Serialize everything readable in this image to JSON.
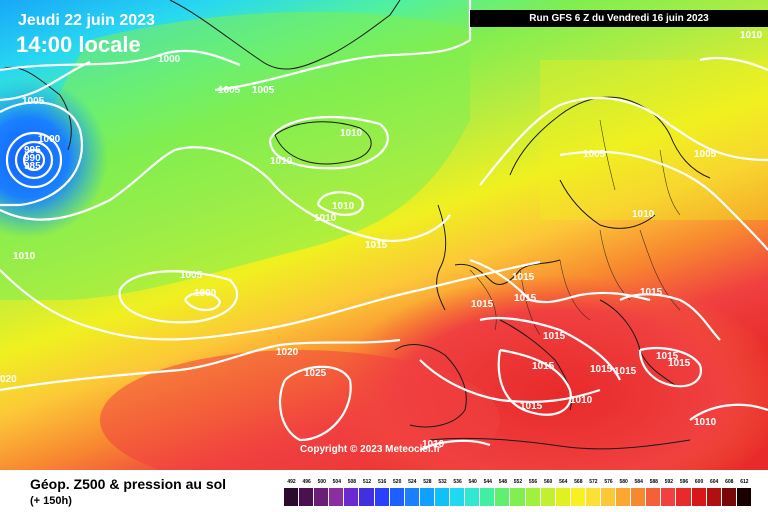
{
  "header": {
    "valid_date": "Jeudi 22 juin 2023",
    "local_time": "14:00 locale",
    "run": "Run GFS 6 Z du Vendredi 16 juin 2023"
  },
  "map": {
    "pressure_labels": [
      {
        "id": "p1",
        "text": "1000"
      },
      {
        "id": "p2",
        "text": "1005"
      },
      {
        "id": "p3",
        "text": "1005"
      },
      {
        "id": "p4",
        "text": "1005"
      },
      {
        "id": "p5",
        "text": "1000"
      },
      {
        "id": "p6",
        "text": "995"
      },
      {
        "id": "p7",
        "text": "990"
      },
      {
        "id": "p8",
        "text": "985"
      },
      {
        "id": "p9",
        "text": "1010"
      },
      {
        "id": "p10",
        "text": "1010"
      },
      {
        "id": "p11",
        "text": "1010"
      },
      {
        "id": "p12",
        "text": "1010"
      },
      {
        "id": "p13",
        "text": "1015"
      },
      {
        "id": "p14",
        "text": "1010"
      },
      {
        "id": "p15",
        "text": "1005"
      },
      {
        "id": "p16",
        "text": "1000"
      },
      {
        "id": "p17",
        "text": "1020"
      },
      {
        "id": "p18",
        "text": "1025"
      },
      {
        "id": "p19",
        "text": "020"
      },
      {
        "id": "p20",
        "text": "1005"
      },
      {
        "id": "p21",
        "text": "1005"
      },
      {
        "id": "p22",
        "text": "1010"
      },
      {
        "id": "p23",
        "text": "1010"
      },
      {
        "id": "p24",
        "text": "1015"
      },
      {
        "id": "p25",
        "text": "1015"
      },
      {
        "id": "p26",
        "text": "1015"
      },
      {
        "id": "p27",
        "text": "1015"
      },
      {
        "id": "p28",
        "text": "1015"
      },
      {
        "id": "p29",
        "text": "1015"
      },
      {
        "id": "p30",
        "text": "1015"
      },
      {
        "id": "p31",
        "text": "1015"
      },
      {
        "id": "p32",
        "text": "1015"
      },
      {
        "id": "p33",
        "text": "1015"
      },
      {
        "id": "p34",
        "text": "1015"
      },
      {
        "id": "p35",
        "text": "1010"
      },
      {
        "id": "p36",
        "text": "1010"
      },
      {
        "id": "p37",
        "text": "1010"
      }
    ],
    "copyright": "Copyright © 2023 Meteociel.fr"
  },
  "footer": {
    "title": "Géop. Z500 & pression au sol",
    "lead_time": "(+ 150h)"
  },
  "legend": {
    "values": [
      "492",
      "496",
      "500",
      "504",
      "508",
      "512",
      "516",
      "520",
      "524",
      "528",
      "532",
      "536",
      "540",
      "544",
      "548",
      "552",
      "556",
      "560",
      "564",
      "568",
      "572",
      "576",
      "580",
      "584",
      "588",
      "592",
      "596",
      "600",
      "604",
      "608",
      "612"
    ],
    "colors": [
      "#2b0a2e",
      "#4a1050",
      "#6a1e78",
      "#8a2ea0",
      "#6a2ad0",
      "#4030e0",
      "#2a40ff",
      "#1e60ff",
      "#1a80ff",
      "#10a0ff",
      "#10c0f8",
      "#20d8f0",
      "#30e8d0",
      "#40f0a0",
      "#60f070",
      "#80f050",
      "#a0f040",
      "#c0f030",
      "#e0f020",
      "#f8f020",
      "#fce038",
      "#fcc838",
      "#fca830",
      "#f88830",
      "#f46038",
      "#f04040",
      "#e82a2a",
      "#d81818",
      "#b01010",
      "#7a0808",
      "#1a0000"
    ]
  }
}
